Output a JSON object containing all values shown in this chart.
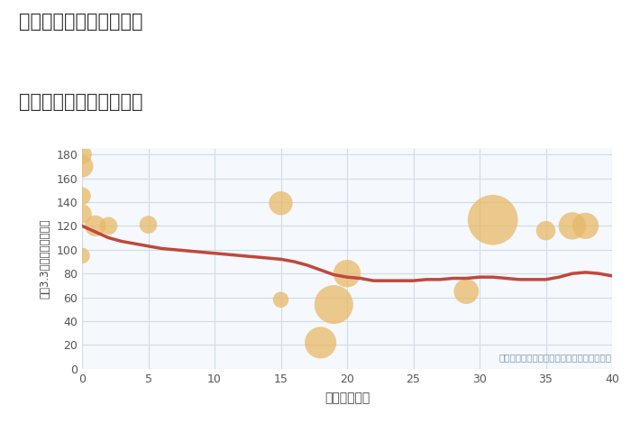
{
  "title_line1": "神奈川県大和市下草柳の",
  "title_line2": "築年数別中古戸建て価格",
  "xlabel": "築年数（年）",
  "ylabel": "坪（3.3㎡）単価（万円）",
  "annotation": "円の大きさは、取引のあった物件面積を示す",
  "background_color": "#ffffff",
  "plot_bg_color": "#f5f8fc",
  "grid_color": "#d0dce8",
  "scatter_x": [
    0,
    0,
    0,
    0,
    0,
    1,
    2,
    5,
    15,
    15,
    18,
    19,
    20,
    29,
    31,
    35,
    37,
    38
  ],
  "scatter_y": [
    180,
    170,
    145,
    130,
    95,
    120,
    120,
    121,
    139,
    58,
    22,
    54,
    80,
    65,
    125,
    116,
    120,
    120
  ],
  "scatter_size": [
    30,
    40,
    25,
    30,
    20,
    35,
    25,
    25,
    45,
    20,
    80,
    120,
    60,
    50,
    200,
    30,
    60,
    55
  ],
  "scatter_color": "#e8b866",
  "scatter_alpha": 0.75,
  "line_x": [
    0,
    1,
    2,
    3,
    4,
    5,
    6,
    7,
    8,
    9,
    10,
    11,
    12,
    13,
    14,
    15,
    16,
    17,
    18,
    19,
    20,
    21,
    22,
    23,
    24,
    25,
    26,
    27,
    28,
    29,
    30,
    31,
    32,
    33,
    34,
    35,
    36,
    37,
    38,
    39,
    40
  ],
  "line_y": [
    120,
    115,
    110,
    107,
    105,
    103,
    101,
    100,
    99,
    98,
    97,
    96,
    95,
    94,
    93,
    92,
    90,
    87,
    83,
    79,
    77,
    76,
    74,
    74,
    74,
    74,
    75,
    75,
    76,
    76,
    77,
    77,
    76,
    75,
    75,
    75,
    77,
    80,
    81,
    80,
    78
  ],
  "line_color": "#c0483c",
  "line_width": 2.5,
  "xlim": [
    0,
    40
  ],
  "ylim": [
    0,
    185
  ],
  "xticks": [
    0,
    5,
    10,
    15,
    20,
    25,
    30,
    35,
    40
  ],
  "yticks": [
    0,
    20,
    40,
    60,
    80,
    100,
    120,
    140,
    160,
    180
  ]
}
